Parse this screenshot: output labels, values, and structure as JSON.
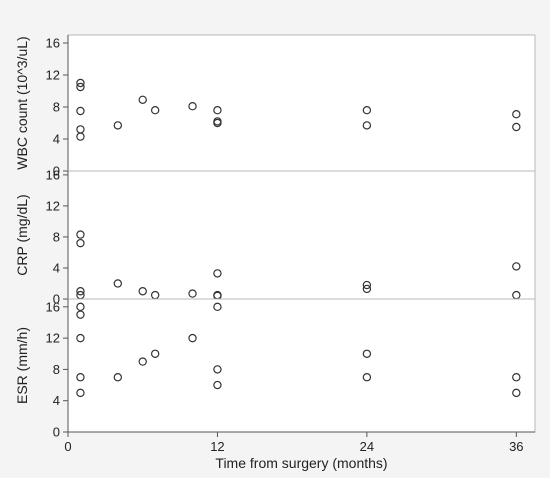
{
  "chart_data": {
    "type": "scatter",
    "xlabel": "Time from surgery (months)",
    "xlim": [
      0,
      37.5
    ],
    "xticks": [
      0,
      12,
      24,
      36
    ],
    "panels": [
      {
        "ylabel": "WBC  count (10^3/uL)",
        "ylim": [
          0,
          17
        ],
        "yticks": [
          0,
          4,
          8,
          12,
          16
        ],
        "points": [
          {
            "x": 1,
            "y": 11.0
          },
          {
            "x": 1,
            "y": 10.5
          },
          {
            "x": 1,
            "y": 7.5
          },
          {
            "x": 1,
            "y": 5.2
          },
          {
            "x": 1,
            "y": 4.3
          },
          {
            "x": 4,
            "y": 5.7
          },
          {
            "x": 6,
            "y": 8.9
          },
          {
            "x": 7,
            "y": 7.6
          },
          {
            "x": 10,
            "y": 8.1
          },
          {
            "x": 12,
            "y": 7.6
          },
          {
            "x": 12,
            "y": 6.2
          },
          {
            "x": 12,
            "y": 6.0
          },
          {
            "x": 24,
            "y": 7.6
          },
          {
            "x": 24,
            "y": 5.7
          },
          {
            "x": 36,
            "y": 7.1
          },
          {
            "x": 36,
            "y": 5.5
          }
        ]
      },
      {
        "ylabel": "CRP (mg/dL)",
        "ylim": [
          0,
          16.5
        ],
        "yticks": [
          0,
          4,
          8,
          12,
          16
        ],
        "points": [
          {
            "x": 1,
            "y": 8.3
          },
          {
            "x": 1,
            "y": 7.2
          },
          {
            "x": 1,
            "y": 1.0
          },
          {
            "x": 1,
            "y": 0.5
          },
          {
            "x": 4,
            "y": 2.0
          },
          {
            "x": 6,
            "y": 1.0
          },
          {
            "x": 7,
            "y": 0.5
          },
          {
            "x": 10,
            "y": 0.7
          },
          {
            "x": 12,
            "y": 3.3
          },
          {
            "x": 12,
            "y": 0.5
          },
          {
            "x": 12,
            "y": 0.4
          },
          {
            "x": 24,
            "y": 1.8
          },
          {
            "x": 24,
            "y": 1.3
          },
          {
            "x": 36,
            "y": 4.2
          },
          {
            "x": 36,
            "y": 0.5
          }
        ]
      },
      {
        "ylabel": "ESR (mm/h)",
        "ylim": [
          0,
          17
        ],
        "yticks": [
          0,
          4,
          8,
          12,
          16
        ],
        "points": [
          {
            "x": 1,
            "y": 16.0
          },
          {
            "x": 1,
            "y": 15.0
          },
          {
            "x": 1,
            "y": 12.0
          },
          {
            "x": 1,
            "y": 7.0
          },
          {
            "x": 1,
            "y": 5.0
          },
          {
            "x": 4,
            "y": 7.0
          },
          {
            "x": 6,
            "y": 9.0
          },
          {
            "x": 7,
            "y": 10.0
          },
          {
            "x": 10,
            "y": 12.0
          },
          {
            "x": 12,
            "y": 16.0
          },
          {
            "x": 12,
            "y": 8.0
          },
          {
            "x": 12,
            "y": 6.0
          },
          {
            "x": 24,
            "y": 10.0
          },
          {
            "x": 24,
            "y": 7.0
          },
          {
            "x": 36,
            "y": 7.0
          },
          {
            "x": 36,
            "y": 5.0
          }
        ]
      }
    ]
  }
}
